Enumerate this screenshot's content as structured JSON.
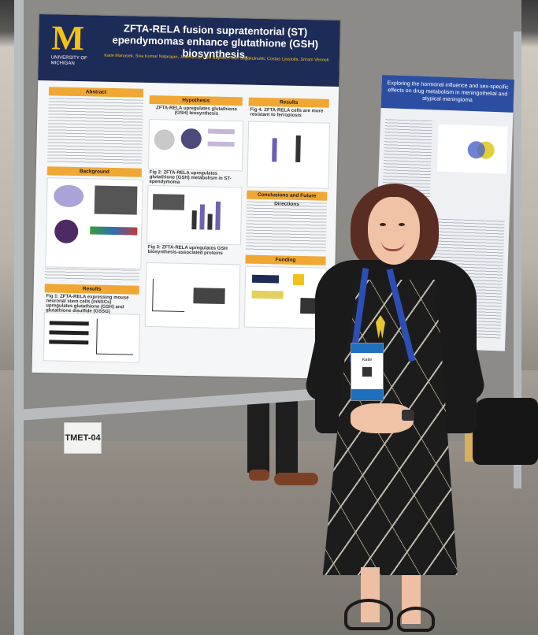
{
  "scene": {
    "description_tag": "poster-session",
    "colors": {
      "board": "#8c8b87",
      "poster_header": "#1d2b57",
      "section_bar": "#f0a733",
      "um_maize": "#f3c219"
    }
  },
  "poster_main": {
    "logo_letter": "M",
    "logo_text_1": "UNIVERSITY OF",
    "logo_text_2": "MICHIGAN",
    "title": "ZFTA-RELA fusion supratentorial (ST) ependymomas enhance glutathione (GSH) biosynthesis.",
    "authors": "Katie Manasek, Siva Kumar Natarajan, Joanna Lum, Jill Bayliss, Peter Sajjakulnukit, Costas Lyssiotis, Sriram Venneti",
    "sections": {
      "abstract": "Abstract",
      "hypothesis": "Hypothesis",
      "background": "Background",
      "results": "Results",
      "results_right": "Results",
      "conclusions": "Conclusions and Future Directions",
      "funding": "Funding"
    },
    "figures": {
      "hypothesis": "ZFTA-RELA upregulates glutathione (GSH) biosynthesis",
      "fig2": "Fig 2: ZFTA-RELA upregulates glutathione (GSH) metabolism in ST-ependymoma",
      "fig3": "Fig 3: ZFTA-RELA upregulates GSH biosynthesis-associated proteins",
      "fig1": "Fig 1: ZFTA-RELA expressing mouse neuronal stem cells (mNSCs) upregulates glutathione (GSH) and glutathione disulfide (GSSG)",
      "fig_right": "Fig 4: ZFTA-RELA cells are more resistant to ferroptosis"
    }
  },
  "poster_second": {
    "title": "Exploring the hormonal influence and sex-specific effects on drug metabolism in meningothelial and atypical meningioma"
  },
  "board_label": "TMET-04",
  "badge": {
    "name": "Katie"
  }
}
